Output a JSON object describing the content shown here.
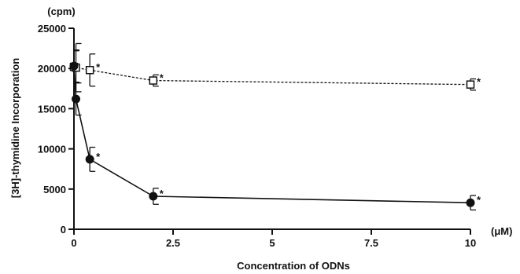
{
  "chart_data": {
    "type": "line",
    "xlabel": "Concentration of ODNs",
    "ylabel": "[3H]-thymidine Incorporation",
    "x_unit": "(μM)",
    "y_unit": "(cpm)",
    "xlim": [
      0,
      10
    ],
    "ylim": [
      0,
      25000
    ],
    "x_ticks": [
      0,
      2.5,
      5,
      7.5,
      10
    ],
    "x_tick_labels": [
      "0",
      "2.5",
      "5",
      "7.5",
      "10"
    ],
    "y_ticks": [
      0,
      5000,
      10000,
      15000,
      20000,
      25000
    ],
    "y_tick_labels": [
      "0",
      "5000",
      "10000",
      "15000",
      "20000",
      "25000"
    ],
    "grid": false,
    "significance_mark": "*",
    "series": [
      {
        "marker": "open-square",
        "line_style": "dashed",
        "x": [
          0,
          0.05,
          0.4,
          2,
          10
        ],
        "y": [
          20200,
          20100,
          19800,
          18500,
          18000
        ],
        "error": [
          2000,
          3000,
          2000,
          700,
          700
        ],
        "starred": [
          false,
          false,
          true,
          true,
          true
        ]
      },
      {
        "marker": "filled-circle",
        "line_style": "solid",
        "x": [
          0,
          0.05,
          0.4,
          2,
          10
        ],
        "y": [
          20300,
          16200,
          8700,
          4100,
          3300
        ],
        "error": [
          2000,
          2000,
          1500,
          1000,
          900
        ],
        "starred": [
          false,
          false,
          true,
          true,
          true
        ]
      }
    ]
  }
}
